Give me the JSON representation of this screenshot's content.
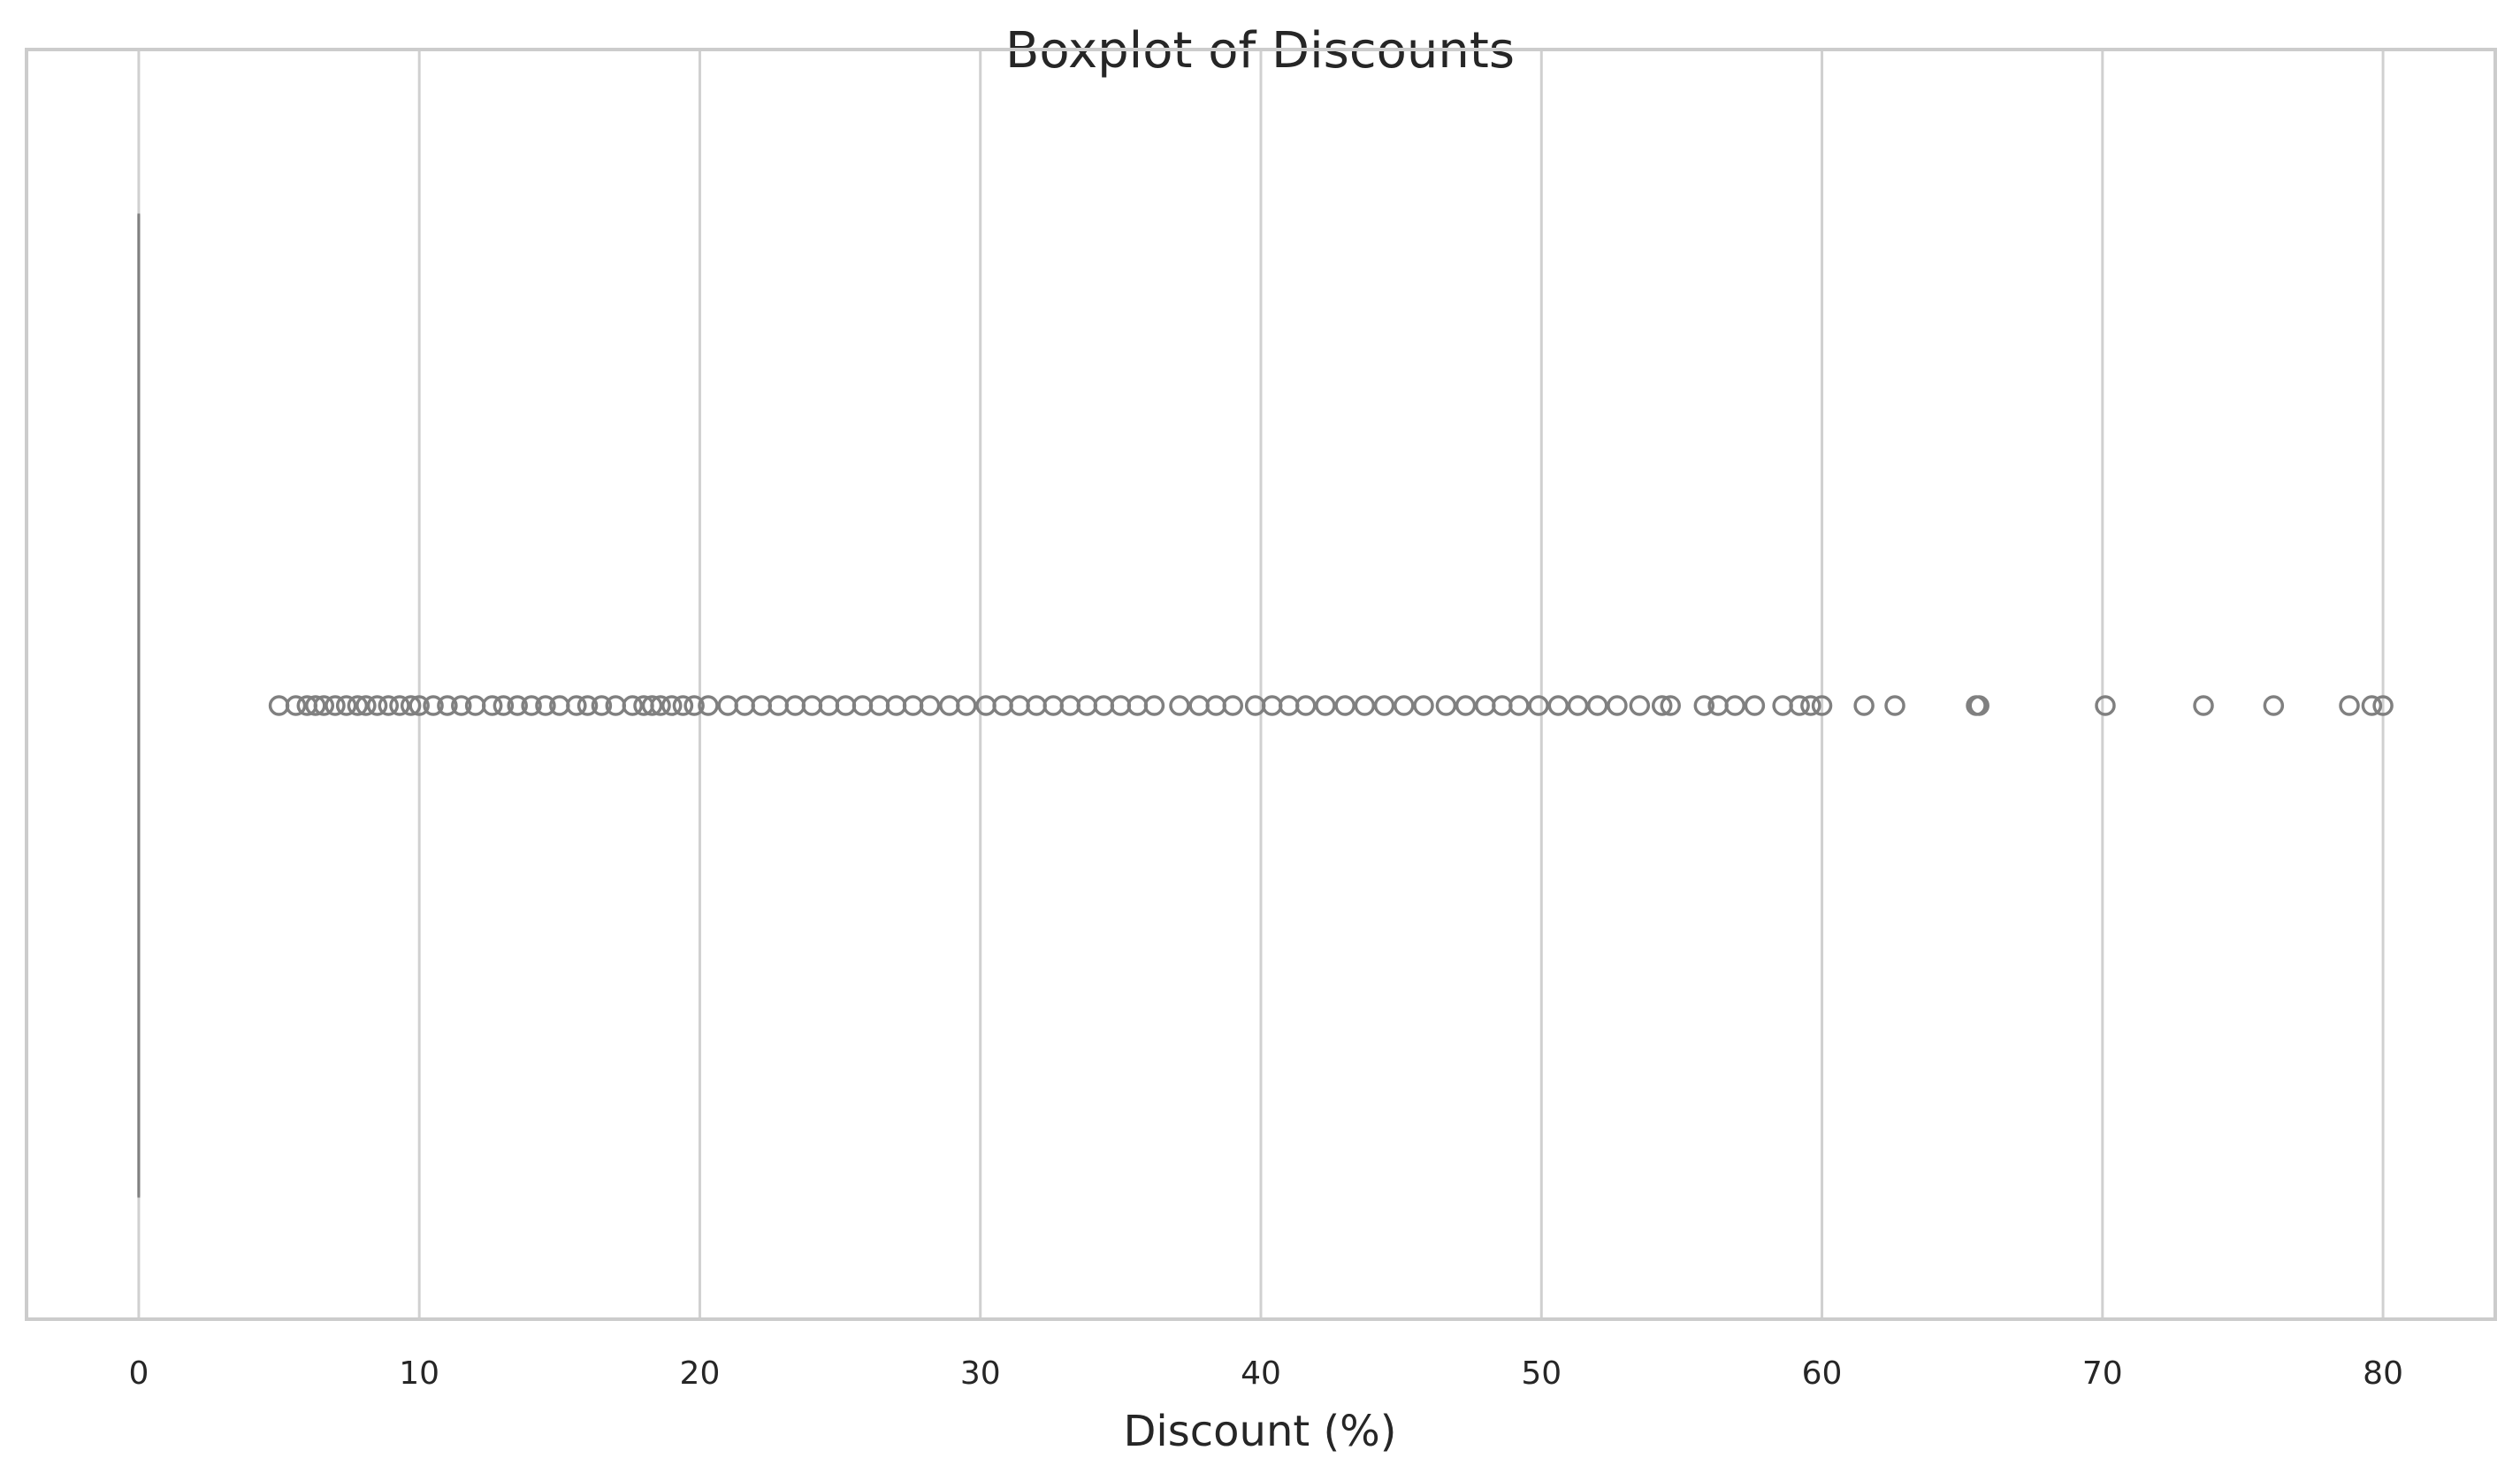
{
  "chart_data": {
    "type": "boxplot",
    "title": "Boxplot of Discounts",
    "xlabel": "Discount (%)",
    "ylabel": "",
    "xlim": [
      -4,
      84
    ],
    "x_ticks": [
      0,
      10,
      20,
      30,
      40,
      50,
      60,
      70,
      80
    ],
    "x_tick_labels": [
      "0",
      "10",
      "20",
      "30",
      "40",
      "50",
      "60",
      "70",
      "80"
    ],
    "grid": "vertical",
    "orientation": "horizontal",
    "box": {
      "min": 0,
      "q1": 0,
      "median": 0,
      "q3": 0,
      "max": 0
    },
    "outliers": [
      5.0,
      5.6,
      6.0,
      6.3,
      6.6,
      7.0,
      7.4,
      7.8,
      8.1,
      8.5,
      8.9,
      9.3,
      9.7,
      10.0,
      10.5,
      11.0,
      11.5,
      12.0,
      12.6,
      13.0,
      13.5,
      14.0,
      14.5,
      15.0,
      15.6,
      16.0,
      16.5,
      17.0,
      17.6,
      18.0,
      18.3,
      18.6,
      19.0,
      19.4,
      19.8,
      20.3,
      21.0,
      21.6,
      22.2,
      22.8,
      23.4,
      24.0,
      24.6,
      25.2,
      25.8,
      26.4,
      27.0,
      27.6,
      28.2,
      28.9,
      29.5,
      30.2,
      30.8,
      31.4,
      32.0,
      32.6,
      33.2,
      33.8,
      34.4,
      35.0,
      35.6,
      36.2,
      37.1,
      37.8,
      38.4,
      39.0,
      39.8,
      40.4,
      41.0,
      41.6,
      42.3,
      43.0,
      43.7,
      44.4,
      45.1,
      45.8,
      46.6,
      47.3,
      48.0,
      48.6,
      49.2,
      49.9,
      50.6,
      51.3,
      52.0,
      52.7,
      53.5,
      54.3,
      54.6,
      55.8,
      56.3,
      56.9,
      57.6,
      58.6,
      59.2,
      59.6,
      60.0,
      61.5,
      62.6,
      65.5,
      65.6,
      70.1,
      73.6,
      76.1,
      78.8,
      79.6,
      80.0
    ],
    "colors": {
      "marker_edge": "#808080",
      "grid": "#d0d0d0",
      "frame": "#cccccc",
      "box_line": "#808080"
    }
  }
}
